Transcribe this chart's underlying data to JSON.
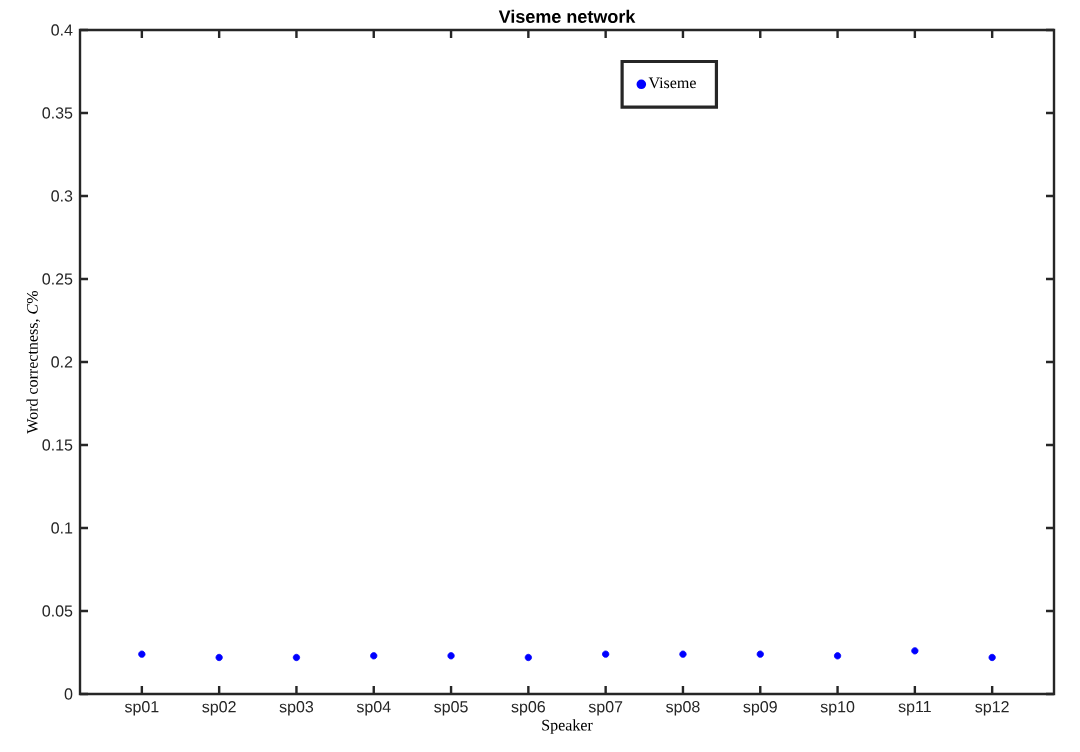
{
  "chart_data": {
    "type": "scatter",
    "title": "Viseme network",
    "xlabel": "Speaker",
    "ylabel": "Word correctness, *C*%",
    "categories": [
      "sp01",
      "sp02",
      "sp03",
      "sp04",
      "sp05",
      "sp06",
      "sp07",
      "sp08",
      "sp09",
      "sp10",
      "sp11",
      "sp12"
    ],
    "series": [
      {
        "name": "Viseme",
        "color": "#0000ff",
        "values": [
          0.024,
          0.022,
          0.022,
          0.023,
          0.023,
          0.022,
          0.024,
          0.024,
          0.024,
          0.023,
          0.026,
          0.022
        ]
      }
    ],
    "ylim": [
      0,
      0.4
    ],
    "yticks": [
      0,
      0.05,
      0.1,
      0.15,
      0.2,
      0.25,
      0.3,
      0.35,
      0.4
    ],
    "legend": "top",
    "grid": false
  }
}
